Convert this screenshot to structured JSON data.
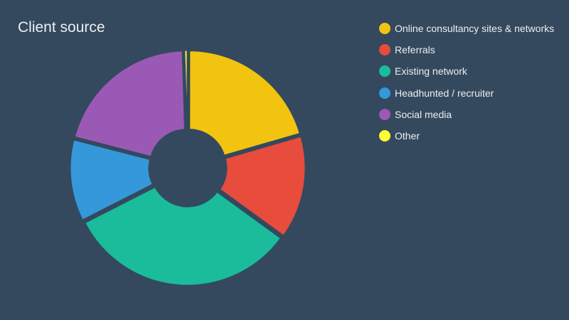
{
  "chart_data": {
    "type": "pie",
    "title": "Client source",
    "donut": true,
    "legend_position": "right",
    "slices": [
      {
        "label": "Online consultancy sites & networks",
        "value": 20.5,
        "color": "#f1c40f"
      },
      {
        "label": "Referrals",
        "value": 14.5,
        "color": "#e74c3c"
      },
      {
        "label": "Existing network",
        "value": 32.5,
        "color": "#1abc9c"
      },
      {
        "label": "Headhunted / recruiter",
        "value": 11.5,
        "color": "#3498db"
      },
      {
        "label": "Social media",
        "value": 20.5,
        "color": "#9b59b6"
      },
      {
        "label": "Other",
        "value": 0.5,
        "color": "#ffff33"
      }
    ]
  }
}
